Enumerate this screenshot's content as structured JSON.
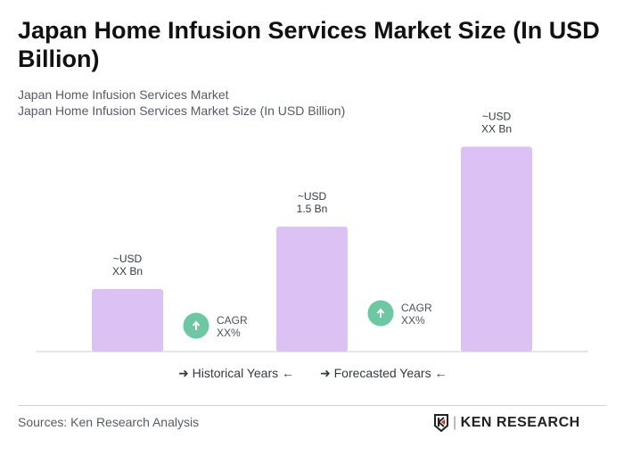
{
  "title": "Japan Home Infusion Services Market Size (In USD Billion)",
  "subtitle1": "Japan Home Infusion Services Market",
  "subtitle2": "Japan Home Infusion Services Market Size (In USD Billion)",
  "chart_data": {
    "type": "bar",
    "categories": [
      "",
      "",
      ""
    ],
    "values": [
      0.75,
      1.5,
      2.46
    ],
    "data_labels": [
      [
        "~USD",
        "XX Bn"
      ],
      [
        "~USD",
        "1.5 Bn"
      ],
      [
        "~USD",
        "XX Bn"
      ]
    ],
    "bar_color": "#dcc1f5",
    "cagr": [
      {
        "label": "CAGR",
        "value": "XX%"
      },
      {
        "label": "CAGR",
        "value": "XX%"
      }
    ],
    "cagr_icon": "arrow-up-circle-icon",
    "cagr_color": "#6cc7a2",
    "legend": [
      "Historical Years",
      "Forecasted Years"
    ]
  },
  "footer": {
    "source": "Sources: Ken Research Analysis",
    "logo_text": "KEN RESEARCH"
  }
}
